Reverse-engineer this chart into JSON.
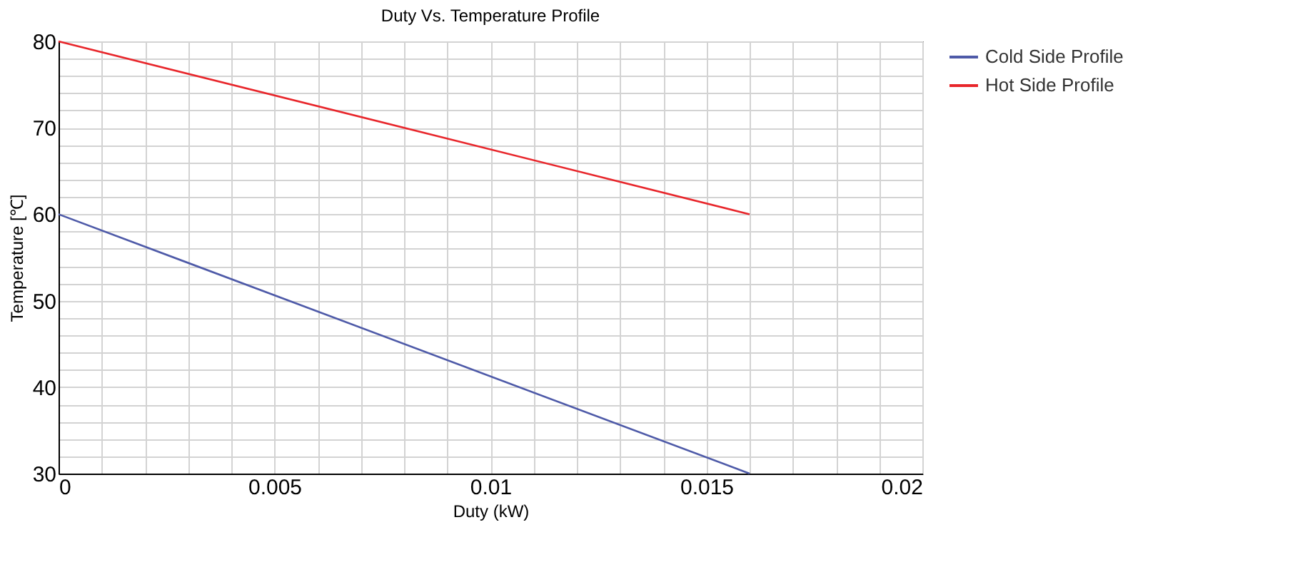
{
  "chart_data": {
    "type": "line",
    "title": "Duty Vs. Temperature Profile",
    "xlabel": "Duty (kW)",
    "ylabel": "Temperature [℃]",
    "x": [
      0,
      0.016
    ],
    "series": [
      {
        "name": "Cold Side Profile",
        "color": "#4e5aa8",
        "values": [
          60,
          30
        ]
      },
      {
        "name": "Hot Side Profile",
        "color": "#e8262b",
        "values": [
          80,
          60
        ]
      }
    ],
    "xlim": [
      0,
      0.02
    ],
    "ylim": [
      30,
      80
    ],
    "xticks": [
      0,
      {
        "value": 0.001,
        "label": null
      },
      {
        "value": 0.002,
        "label": null
      },
      {
        "value": 0.003,
        "label": null
      },
      {
        "value": 0.004,
        "label": null
      },
      0.005,
      {
        "value": 0.006,
        "label": null
      },
      {
        "value": 0.007,
        "label": null
      },
      {
        "value": 0.008,
        "label": null
      },
      {
        "value": 0.009,
        "label": null
      },
      0.01,
      {
        "value": 0.011,
        "label": null
      },
      {
        "value": 0.012,
        "label": null
      },
      {
        "value": 0.013,
        "label": null
      },
      {
        "value": 0.014,
        "label": null
      },
      0.015,
      {
        "value": 0.016,
        "label": null
      },
      {
        "value": 0.017,
        "label": null
      },
      {
        "value": 0.018,
        "label": null
      },
      {
        "value": 0.019,
        "label": null
      },
      0.02
    ],
    "yticks": [
      30,
      {
        "value": 32,
        "label": null
      },
      {
        "value": 34,
        "label": null
      },
      {
        "value": 36,
        "label": null
      },
      {
        "value": 38,
        "label": null
      },
      40,
      {
        "value": 42,
        "label": null
      },
      {
        "value": 44,
        "label": null
      },
      {
        "value": 46,
        "label": null
      },
      {
        "value": 48,
        "label": null
      },
      50,
      {
        "value": 52,
        "label": null
      },
      {
        "value": 54,
        "label": null
      },
      {
        "value": 56,
        "label": null
      },
      {
        "value": 58,
        "label": null
      },
      60,
      {
        "value": 62,
        "label": null
      },
      {
        "value": 64,
        "label": null
      },
      {
        "value": 66,
        "label": null
      },
      {
        "value": 68,
        "label": null
      },
      70,
      {
        "value": 72,
        "label": null
      },
      {
        "value": 74,
        "label": null
      },
      {
        "value": 76,
        "label": null
      },
      {
        "value": 78,
        "label": null
      },
      80
    ],
    "grid": true,
    "legend": "top right",
    "marker": "none",
    "line_style": "solid"
  }
}
